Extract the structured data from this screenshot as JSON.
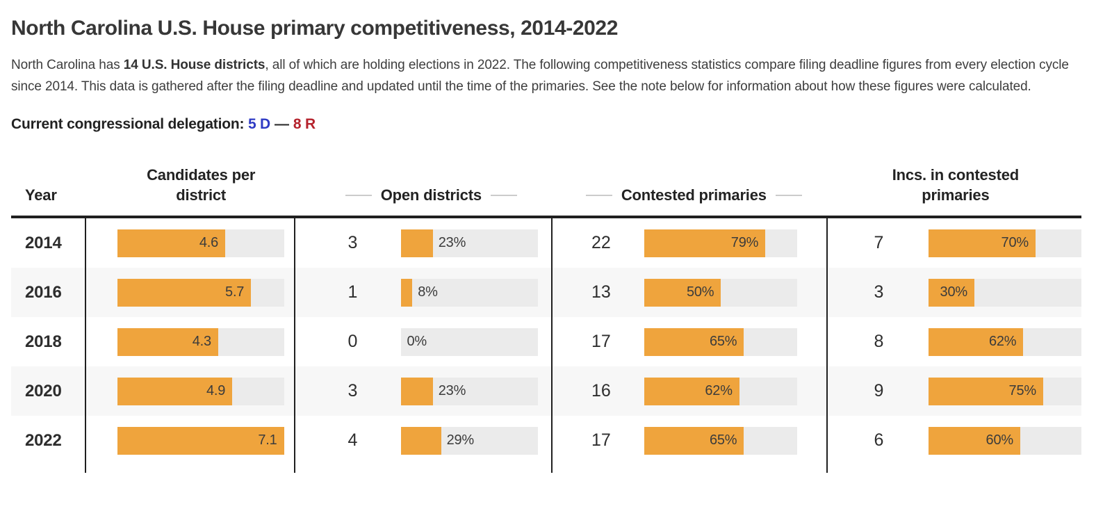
{
  "page": {
    "title": "North Carolina U.S. House primary competitiveness, 2014-2022",
    "intro": {
      "pre_bold": "North Carolina has ",
      "bold": "14 U.S. House districts",
      "post_bold": ", all of which are holding elections in 2022. The following competitiveness statistics compare filing deadline figures from every election cycle since 2014. This data is gathered after the filing deadline and updated until the time of the primaries. See the note below for information about how these figures were calculated."
    },
    "delegation": {
      "label": "Current congressional delegation:",
      "dem": "5 D",
      "separator": "—",
      "rep": "8 R"
    }
  },
  "table_headers": [
    {
      "label": "Year",
      "dashes": false
    },
    {
      "label": "Candidates per district",
      "dashes": false
    },
    {
      "label": "Open districts",
      "dashes": true
    },
    {
      "label": "Contested primaries",
      "dashes": true
    },
    {
      "label": "Incs. in contested primaries",
      "dashes": false
    }
  ],
  "chart_data": {
    "type": "table",
    "title": "North Carolina U.S. House primary competitiveness, 2014-2022",
    "columns": [
      "Year",
      "Candidates per district",
      "Open districts",
      "Contested primaries",
      "Incs. in contested primaries"
    ],
    "bar_scales": {
      "candidates_per_district": {
        "min": 0,
        "max": 7.1
      },
      "percent_columns": {
        "min": 0,
        "max": 100,
        "unit": "%"
      }
    },
    "rows": [
      {
        "year": "2014",
        "candidates_per_district": 4.6,
        "open_districts": {
          "count": 3,
          "pct": 23
        },
        "contested_primaries": {
          "count": 22,
          "pct": 79
        },
        "incs_in_contested": {
          "count": 7,
          "pct": 70
        }
      },
      {
        "year": "2016",
        "candidates_per_district": 5.7,
        "open_districts": {
          "count": 1,
          "pct": 8
        },
        "contested_primaries": {
          "count": 13,
          "pct": 50
        },
        "incs_in_contested": {
          "count": 3,
          "pct": 30
        }
      },
      {
        "year": "2018",
        "candidates_per_district": 4.3,
        "open_districts": {
          "count": 0,
          "pct": 0
        },
        "contested_primaries": {
          "count": 17,
          "pct": 65
        },
        "incs_in_contested": {
          "count": 8,
          "pct": 62
        }
      },
      {
        "year": "2020",
        "candidates_per_district": 4.9,
        "open_districts": {
          "count": 3,
          "pct": 23
        },
        "contested_primaries": {
          "count": 16,
          "pct": 62
        },
        "incs_in_contested": {
          "count": 9,
          "pct": 75
        }
      },
      {
        "year": "2022",
        "candidates_per_district": 7.1,
        "open_districts": {
          "count": 4,
          "pct": 29
        },
        "contested_primaries": {
          "count": 17,
          "pct": 65
        },
        "incs_in_contested": {
          "count": 6,
          "pct": 60
        }
      }
    ]
  },
  "colors": {
    "accent_orange": "#efa43d",
    "bar_track": "#ebebeb",
    "row_alt": "#f7f7f7",
    "border_dark": "#1f1f1f",
    "dem_blue": "#2f3bc4",
    "rep_red": "#b5222c"
  }
}
